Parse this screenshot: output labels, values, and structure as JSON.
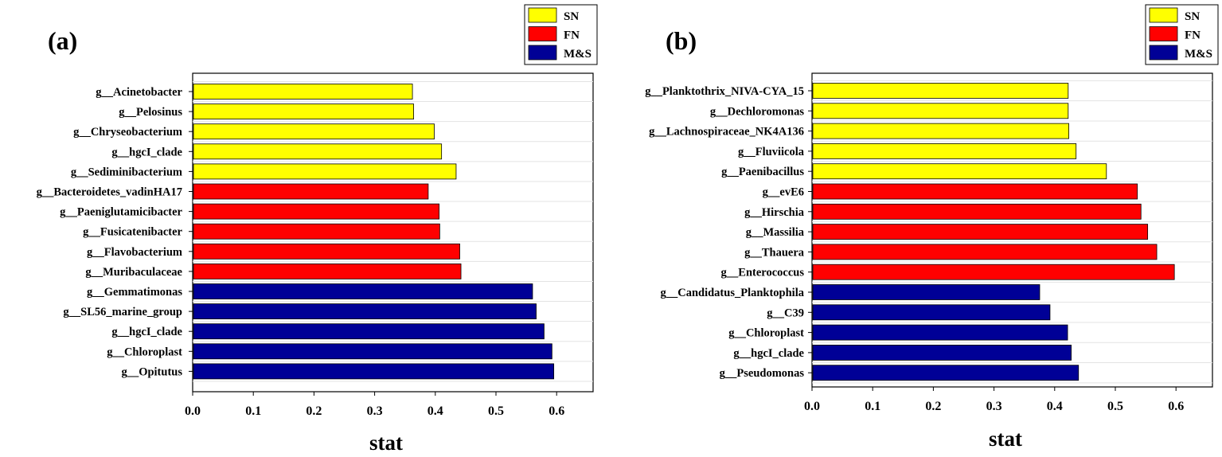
{
  "chart_data": [
    {
      "type": "bar",
      "orientation": "horizontal",
      "panel_label": "(a)",
      "xlabel": "stat",
      "ylabel": "",
      "xlim": [
        0.0,
        0.66
      ],
      "xticks": [
        "0.0",
        "0.1",
        "0.2",
        "0.3",
        "0.4",
        "0.5",
        "0.6"
      ],
      "grid": true,
      "legend_position": "top-right",
      "legend": [
        {
          "label": "SN",
          "color": "#ffff00"
        },
        {
          "label": "FN",
          "color": "#ff0000"
        },
        {
          "label": "M&S",
          "color": "#000096"
        }
      ],
      "categories": [
        "g__Acinetobacter",
        "g__Pelosinus",
        "g__Chryseobacterium",
        "g__hgcI_clade",
        "g__Sediminibacterium",
        "g__Bacteroidetes_vadinHA17",
        "g__Paeniglutamicibacter",
        "g__Fusicatenibacter",
        "g__Flavobacterium",
        "g__Muribaculaceae",
        "g__Gemmatimonas",
        "g__SL56_marine_group",
        "g__hgcI_clade",
        "g__Chloroplast",
        "g__Opitutus"
      ],
      "values": [
        0.361,
        0.363,
        0.397,
        0.409,
        0.433,
        0.387,
        0.405,
        0.406,
        0.439,
        0.441,
        0.559,
        0.565,
        0.578,
        0.591,
        0.594
      ],
      "groups": [
        "SN",
        "SN",
        "SN",
        "SN",
        "SN",
        "FN",
        "FN",
        "FN",
        "FN",
        "FN",
        "M&S",
        "M&S",
        "M&S",
        "M&S",
        "M&S"
      ]
    },
    {
      "type": "bar",
      "orientation": "horizontal",
      "panel_label": "(b)",
      "xlabel": "stat",
      "ylabel": "",
      "xlim": [
        0.0,
        0.66
      ],
      "xticks": [
        "0.0",
        "0.1",
        "0.2",
        "0.3",
        "0.4",
        "0.5",
        "0.6"
      ],
      "grid": true,
      "legend_position": "top-right",
      "legend": [
        {
          "label": "SN",
          "color": "#ffff00"
        },
        {
          "label": "FN",
          "color": "#ff0000"
        },
        {
          "label": "M&S",
          "color": "#000096"
        }
      ],
      "categories": [
        "g__Planktothrix_NIVA-CYA_15",
        "g__Dechloromonas",
        "g__Lachnospiraceae_NK4A136",
        "g__Fluviicola",
        "g__Paenibacillus",
        "g__evE6",
        "g__Hirschia",
        "g__Massilia",
        "g__Thauera",
        "g__Enterococcus",
        "g__Candidatus_Planktophila",
        "g__C39",
        "g__Chloroplast",
        "g__hgcI_clade",
        "g__Pseudomonas"
      ],
      "values": [
        0.421,
        0.421,
        0.422,
        0.434,
        0.484,
        0.535,
        0.541,
        0.552,
        0.567,
        0.596,
        0.374,
        0.391,
        0.42,
        0.426,
        0.438
      ],
      "groups": [
        "SN",
        "SN",
        "SN",
        "SN",
        "SN",
        "FN",
        "FN",
        "FN",
        "FN",
        "FN",
        "M&S",
        "M&S",
        "M&S",
        "M&S",
        "M&S"
      ]
    }
  ]
}
